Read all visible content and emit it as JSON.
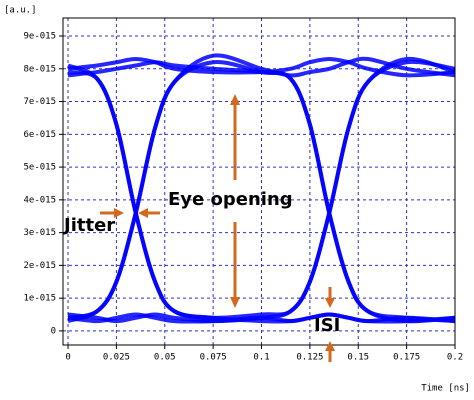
{
  "chart_data": {
    "type": "eye",
    "y_label": "[a.u.]",
    "x_label": "Time [ns]",
    "annotations": [
      "Jitter",
      "Eye opening",
      "ISI"
    ],
    "xlim": [
      -0.0026,
      0.2
    ],
    "ylim": [
      -4.3e-16,
      9.55e-15
    ],
    "xticks": [
      0,
      0.025,
      0.05,
      0.075,
      0.1,
      0.125,
      0.15,
      0.175,
      0.2
    ],
    "yticks": [
      0,
      {
        "value": 1e-15,
        "label": "1e-015"
      },
      {
        "value": 2e-15,
        "label": "2e-015"
      },
      {
        "value": 3e-15,
        "label": "3e-015"
      },
      {
        "value": 4e-15,
        "label": "4e-015"
      },
      {
        "value": 5e-15,
        "label": "5e-015"
      },
      {
        "value": 6e-15,
        "label": "6e-015"
      },
      {
        "value": 7e-15,
        "label": "7e-015"
      },
      {
        "value": 8e-15,
        "label": "8e-015"
      },
      {
        "value": 9e-15,
        "label": "9e-015"
      }
    ],
    "grid": true,
    "x": [
      0,
      0.015,
      0.025,
      0.035,
      0.045,
      0.055,
      0.075,
      0.1,
      0.115,
      0.125,
      0.135,
      0.145,
      0.155,
      0.175,
      0.2
    ],
    "series": [
      {
        "color": "#0000ff",
        "values": [
          8e-15,
          8.1e-15,
          8.2e-15,
          8.3e-15,
          8.2e-15,
          8e-15,
          7.9e-15,
          7.9e-15,
          8e-15,
          8.2e-15,
          8.3e-15,
          8.2e-15,
          8e-15,
          7.8e-15,
          7.9e-15
        ]
      },
      {
        "color": "#0000ff",
        "values": [
          7.8e-15,
          7.9e-15,
          8e-15,
          8.1e-15,
          8.2e-15,
          8.1e-15,
          8e-15,
          7.9e-15,
          7.7e-15,
          6.3e-15,
          3.6e-15,
          1.5e-15,
          6e-16,
          4e-16,
          3e-16
        ]
      },
      {
        "color": "#0000ff",
        "values": [
          7.9e-15,
          7.7e-15,
          6.3e-15,
          3.6e-15,
          1.5e-15,
          6e-16,
          4e-16,
          5e-16,
          6e-16,
          1.5e-15,
          3.6e-15,
          6.2e-15,
          7.6e-15,
          8.3e-15,
          7.9e-15
        ]
      },
      {
        "color": "#0000ff",
        "values": [
          8.1e-15,
          7.7e-15,
          6.3e-15,
          3.6e-15,
          1.5e-15,
          6e-16,
          4e-16,
          3e-16,
          3e-16,
          4e-16,
          5e-16,
          4e-16,
          3e-16,
          3e-16,
          4e-16
        ]
      },
      {
        "color": "#0000ff",
        "values": [
          4e-16,
          6e-16,
          1.5e-15,
          3.6e-15,
          6.2e-15,
          7.6e-15,
          8.4e-15,
          8e-15,
          7.8e-15,
          7.9e-15,
          8e-15,
          8.2e-15,
          8.3e-15,
          8e-15,
          7.8e-15
        ]
      },
      {
        "color": "#0000ff",
        "values": [
          3e-16,
          6e-16,
          1.5e-15,
          3.6e-15,
          6.2e-15,
          7.6e-15,
          8.2e-15,
          7.9e-15,
          7.7e-15,
          6.3e-15,
          3.6e-15,
          1.5e-15,
          6e-16,
          3e-16,
          4e-16
        ]
      },
      {
        "color": "#0000ff",
        "values": [
          5e-16,
          4e-16,
          3e-16,
          4e-16,
          5e-16,
          4e-16,
          3e-16,
          4e-16,
          6e-16,
          1.5e-15,
          3.6e-15,
          6.2e-15,
          7.6e-15,
          8.2e-15,
          8e-15
        ]
      },
      {
        "color": "#0000ff",
        "values": [
          4e-16,
          3e-16,
          4e-16,
          5e-16,
          4e-16,
          3e-16,
          3e-16,
          4e-16,
          3e-16,
          4e-16,
          5e-16,
          4e-16,
          3e-16,
          4e-16,
          3e-16
        ]
      }
    ]
  }
}
